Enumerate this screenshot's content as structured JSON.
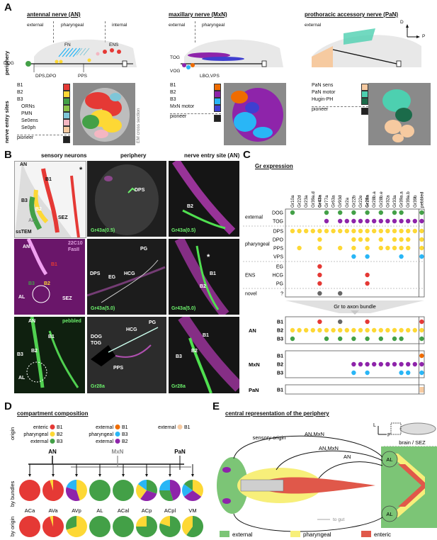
{
  "panelA": {
    "label": "A",
    "an": {
      "title": "antennal nerve (AN)",
      "external": "external",
      "pharyngeal": "pharyngeal",
      "internal": "internal",
      "FN": "FN",
      "ENS": "ENS",
      "DOG": "DOG",
      "DPS": "DPS,DPO",
      "PPS": "PPS"
    },
    "mxn": {
      "title": "maxillary nerve (MxN)",
      "external": "external",
      "pharyngeal": "pharyngeal",
      "TOG": "TOG",
      "VOG": "VOG",
      "LBO": "LBO,VPS"
    },
    "pan": {
      "title": "prothoracic accessory nerve (PaN)",
      "external": "external"
    },
    "axis_d": "D",
    "axis_p": "P",
    "row_periphery": "periphery",
    "row_entry": "nerve entry sites",
    "an_legend": [
      {
        "label": "B1",
        "color": "#e53935"
      },
      {
        "label": "B2",
        "color": "#fdd835"
      },
      {
        "label": "B3",
        "color": "#43a047"
      },
      {
        "label": "ORNs",
        "color": "#8bc34a"
      },
      {
        "label": "PMN",
        "color": "#7fc6d8"
      },
      {
        "label": "Se0ens",
        "color": "#f4b6c2"
      },
      {
        "label": "Se0ph",
        "color": "#f6caa0"
      },
      {
        "label": "pioneer",
        "color": "#222222"
      }
    ],
    "mxn_legend": [
      {
        "label": "B1",
        "color": "#ef6c00"
      },
      {
        "label": "B2",
        "color": "#8e24aa"
      },
      {
        "label": "B3",
        "color": "#29b6f6"
      },
      {
        "label": "MxN motor",
        "color": "#3f3fd0"
      },
      {
        "label": "pioneer",
        "color": "#222222"
      }
    ],
    "pan_legend": [
      {
        "label": "PaN sens",
        "color": "#f6caa0"
      },
      {
        "label": "PaN motor",
        "color": "#4dd0b0"
      },
      {
        "label": "Hugin-PH",
        "color": "#1b6b4a"
      },
      {
        "label": "pioneer",
        "color": "#222222"
      }
    ],
    "em_label": "EM cross section"
  },
  "panelB": {
    "label": "B",
    "col1": "sensory neurons",
    "col2": "periphery",
    "col3": "nerve entry site (AN)",
    "r1c1": {
      "AN": "AN",
      "B1": "B1",
      "B2": "B2",
      "B3": "B3",
      "AL": "AL",
      "SEZ": "SEZ",
      "ssTEM": "ssTEM",
      "star": "*"
    },
    "r1c2": {
      "DPS": "DPS",
      "caption": "Gr43a(0.5)"
    },
    "r1c3": {
      "B2": "B2",
      "caption": "Gr43a(0.5)"
    },
    "r2c1": {
      "AN": "AN",
      "B1": "B1",
      "B2": "B2",
      "B3": "B3",
      "AL": "AL",
      "SEZ": "SEZ",
      "stain1": "22C10",
      "stain2": "FasII"
    },
    "r2c2": {
      "PG": "PG",
      "DPS": "DPS",
      "EG": "EG",
      "HCG": "HCG",
      "caption": "Gr43a(5.0)"
    },
    "r2c3": {
      "B1": "B1",
      "B2": "B2",
      "star": "*",
      "caption": "Gr43a(5.0)"
    },
    "r3c1": {
      "AN": "AN",
      "B1": "B1",
      "B2": "B2",
      "B3": "B3",
      "AL": "AL",
      "caption": "pebbled"
    },
    "r3c2": {
      "PG": "PG",
      "HCG": "HCG",
      "DOG": "DOG",
      "TOG": "TOG",
      "PPS": "PPS",
      "caption": "Gr28a"
    },
    "r3c3": {
      "B1": "B1",
      "B2": "B2",
      "B3": "B3",
      "caption": "Gr28a"
    }
  },
  "panelC": {
    "label": "C",
    "title": "Gr expression",
    "columns": [
      "Gr10a",
      "Gr22d",
      "Gr23a",
      "Gr39a.d",
      "Gr43a",
      "Gr77a",
      "Gr63a",
      "Gr93d",
      "Gr2a",
      "Gr22b",
      "Gr22e",
      "Gr28a",
      "Gr28b.a",
      "Gr28b.e",
      "Gr32a",
      "Gr33a",
      "Gr39a.a",
      "Gr39a.b",
      "Gr39b",
      "pebbled"
    ],
    "groups": [
      "external",
      "pharyngeal",
      "ENS",
      "novel"
    ],
    "rows": [
      "DOG",
      "TOG",
      "DPS",
      "DPO",
      "PPS",
      "VPS",
      "EG",
      "HCG",
      "PG",
      "?"
    ],
    "arrow_label": "Gr to axon bundle",
    "bundle_groups": [
      "AN",
      "MxN",
      "PaN"
    ],
    "bundle_rows": [
      "B1",
      "B2",
      "B3",
      "B1",
      "B2",
      "B3",
      "B1"
    ]
  },
  "panelD": {
    "label": "D",
    "title": "compartment composition",
    "origin_label": "origin",
    "by_bundles": "by bundles",
    "by_origin": "by origin",
    "an_legend": [
      {
        "label": "enteric",
        "b": "B1",
        "color": "#e53935"
      },
      {
        "label": "pharyngeal",
        "b": "B2",
        "color": "#fdd835"
      },
      {
        "label": "external",
        "b": "B3",
        "color": "#43a047"
      }
    ],
    "mxn_legend": [
      {
        "label": "external",
        "b": "B1",
        "color": "#ef6c00"
      },
      {
        "label": "pharyngeal",
        "b": "B3",
        "color": "#29b6f6"
      },
      {
        "label": "external",
        "b": "B2",
        "color": "#8e24aa"
      }
    ],
    "pan_legend": [
      {
        "label": "external",
        "b": "B1",
        "color": "#f6caa0"
      }
    ],
    "AN": "AN",
    "MxN": "MxN",
    "PaN": "PaN",
    "compartments": [
      "ACa",
      "AVa",
      "AVp",
      "AL",
      "ACal",
      "ACp",
      "ACpl",
      "VM"
    ]
  },
  "panelE": {
    "label": "E",
    "title": "central representation of the periphery",
    "sensory_origin": "sensory origin",
    "brain": "brain / SEZ",
    "an_mxn_1": "AN,MxN",
    "an_mxn_2": "AN,MxN",
    "an": "AN",
    "to_gut": "to gut",
    "AL_top": "AL",
    "AL_bottom": "AL",
    "axis_l": "L",
    "axis_p": "P",
    "legend": [
      {
        "label": "external",
        "color": "#7cc576"
      },
      {
        "label": "pharyngeal",
        "color": "#f7ef7a"
      },
      {
        "label": "enteric",
        "color": "#e0584a"
      }
    ]
  }
}
